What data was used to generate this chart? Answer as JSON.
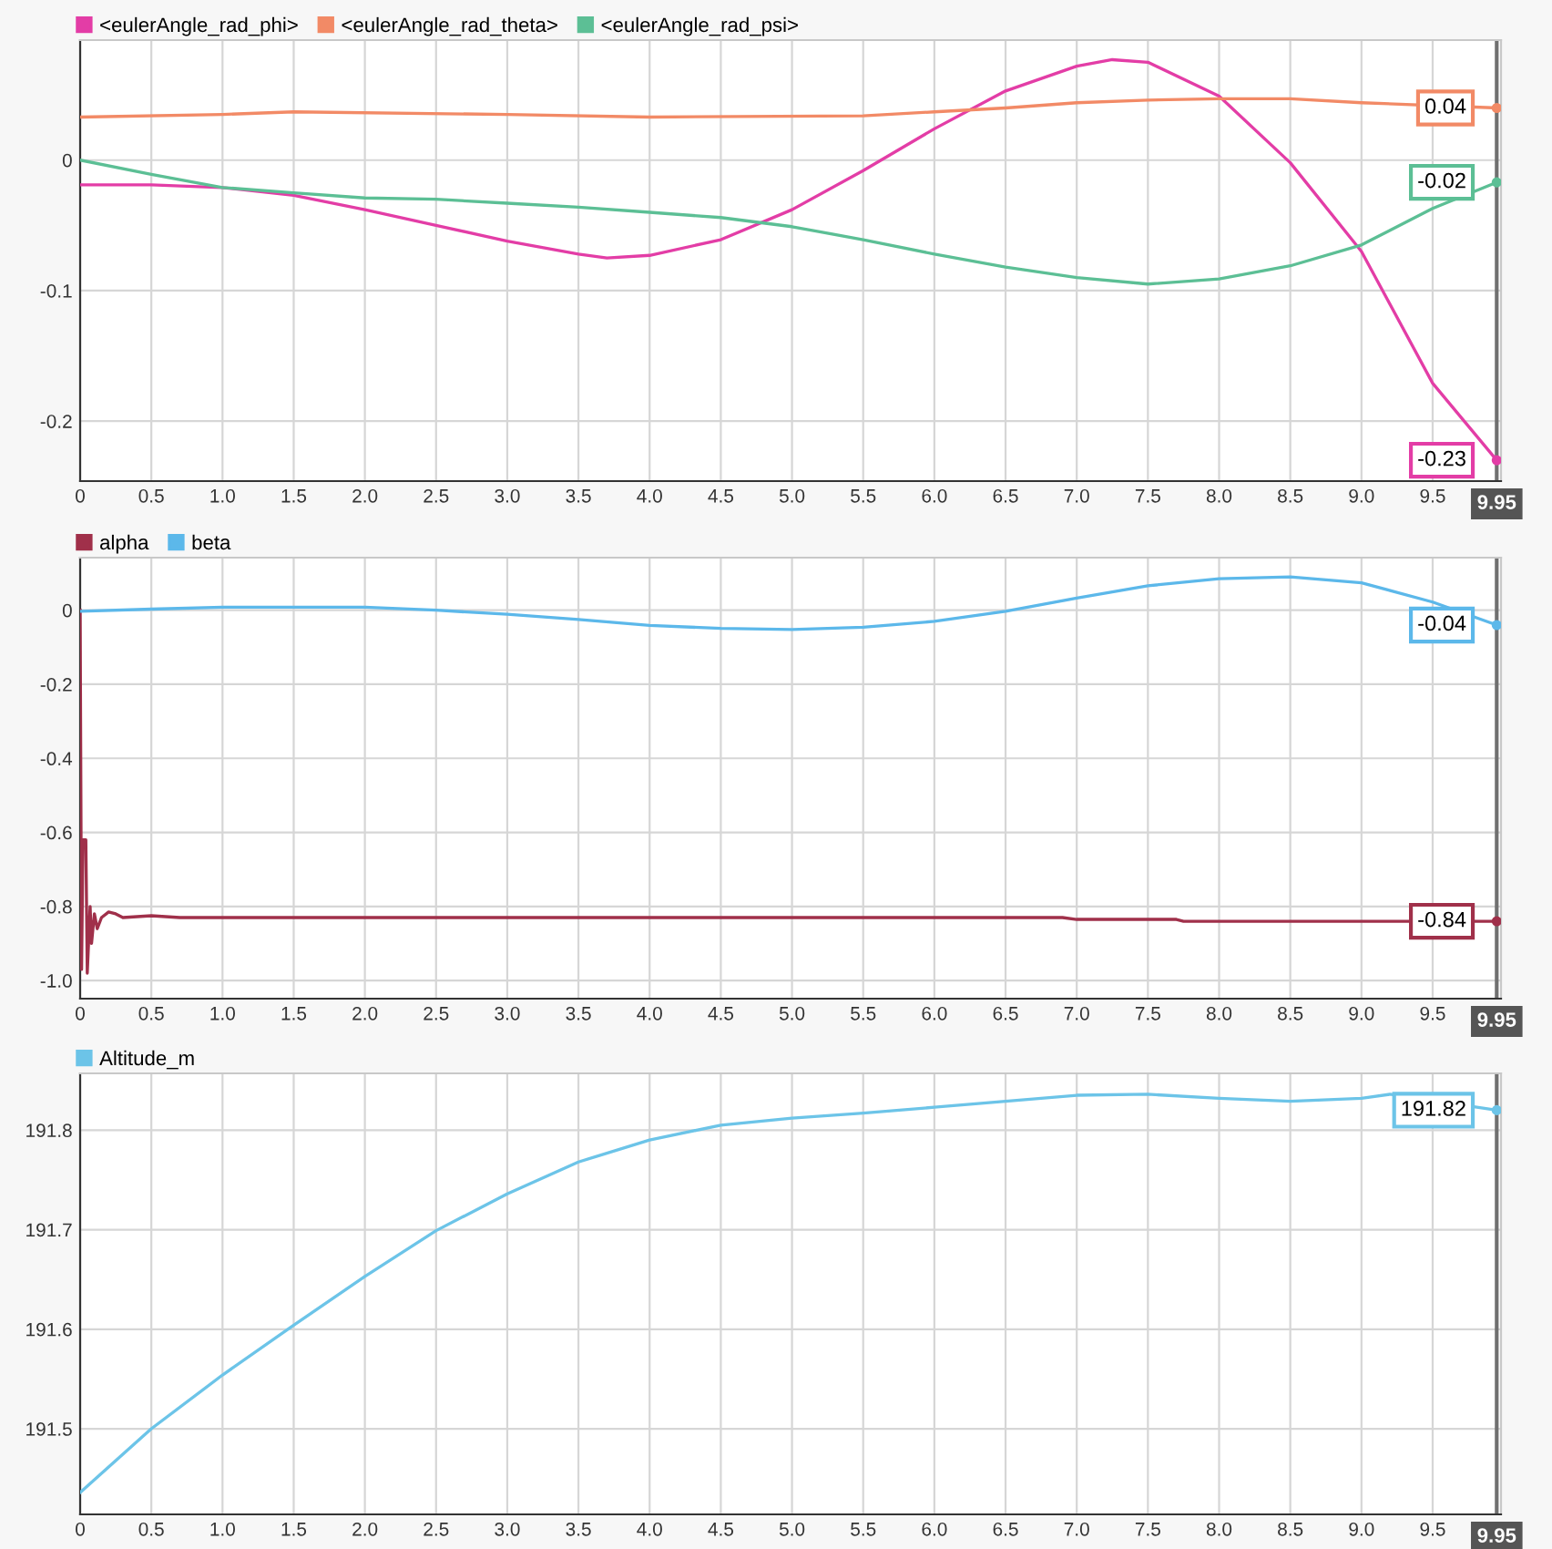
{
  "chart_data": [
    {
      "type": "line",
      "legend": "top left",
      "grid": true,
      "xlim": [
        0,
        9.98
      ],
      "ylim": [
        -0.246,
        0.092
      ],
      "xticks": [
        0,
        0.5,
        {
          "value": 1,
          "label": "1.0"
        },
        1.5,
        {
          "value": 2,
          "label": "2.0"
        },
        2.5,
        {
          "value": 3,
          "label": "3.0"
        },
        3.5,
        {
          "value": 4,
          "label": "4.0"
        },
        4.5,
        {
          "value": 5,
          "label": "5.0"
        },
        5.5,
        {
          "value": 6,
          "label": "6.0"
        },
        6.5,
        {
          "value": 7,
          "label": "7.0"
        },
        7.5,
        {
          "value": 8,
          "label": "8.0"
        },
        8.5,
        {
          "value": 9,
          "label": "9.0"
        },
        9.5
      ],
      "yticks": [
        -0.2,
        -0.1,
        0
      ],
      "ref_lines": [
        {
          "axis": "x",
          "value": 9.95,
          "label": "9.95",
          "color": "#707070"
        }
      ],
      "series": [
        {
          "name": "<eulerAngle_rad_phi>",
          "color": "#e33da6",
          "x": [
            0,
            0.5,
            1,
            1.5,
            2,
            2.5,
            3,
            3.5,
            3.7,
            4,
            4.5,
            5,
            5.5,
            6,
            6.5,
            7,
            7.25,
            7.5,
            8,
            8.5,
            9,
            9.5,
            9.95
          ],
          "values": [
            -0.019,
            -0.019,
            -0.021,
            -0.027,
            -0.038,
            -0.05,
            -0.062,
            -0.072,
            -0.075,
            -0.073,
            -0.061,
            -0.038,
            -0.008,
            0.024,
            0.053,
            0.072,
            0.077,
            0.075,
            0.049,
            -0.002,
            -0.07,
            -0.171,
            -0.23
          ],
          "value_labels": [
            null,
            null,
            null,
            null,
            null,
            null,
            null,
            null,
            null,
            null,
            null,
            null,
            null,
            null,
            null,
            null,
            null,
            null,
            null,
            null,
            null,
            null,
            "-0.23"
          ]
        },
        {
          "name": "<eulerAngle_rad_theta>",
          "color": "#f28a66",
          "x": [
            0,
            1,
            1.5,
            3,
            4,
            5.5,
            6,
            6.5,
            7,
            7.5,
            8,
            8.5,
            9,
            9.95
          ],
          "values": [
            0.033,
            0.035,
            0.037,
            0.035,
            0.033,
            0.034,
            0.037,
            0.04,
            0.044,
            0.046,
            0.047,
            0.047,
            0.044,
            0.04
          ],
          "value_labels": [
            null,
            null,
            null,
            null,
            null,
            null,
            null,
            null,
            null,
            null,
            null,
            null,
            null,
            "0.04"
          ]
        },
        {
          "name": "<eulerAngle_rad_psi>",
          "color": "#5cbf95",
          "x": [
            0,
            0.5,
            1,
            1.5,
            2,
            2.5,
            3,
            3.5,
            4,
            4.5,
            5,
            5.5,
            6,
            6.5,
            7,
            7.5,
            8,
            8.5,
            9,
            9.5,
            9.95
          ],
          "values": [
            0,
            -0.011,
            -0.021,
            -0.025,
            -0.029,
            -0.03,
            -0.033,
            -0.036,
            -0.04,
            -0.044,
            -0.051,
            -0.061,
            -0.072,
            -0.082,
            -0.09,
            -0.095,
            -0.091,
            -0.081,
            -0.065,
            -0.037,
            -0.017
          ],
          "value_labels": [
            null,
            null,
            null,
            null,
            null,
            null,
            null,
            null,
            null,
            null,
            null,
            null,
            null,
            null,
            null,
            null,
            null,
            null,
            null,
            null,
            "-0.02"
          ]
        }
      ]
    },
    {
      "type": "line",
      "legend": "top left",
      "grid": true,
      "xlim": [
        0,
        9.98
      ],
      "ylim": [
        -1.049,
        0.142
      ],
      "xticks": [
        0,
        0.5,
        {
          "value": 1,
          "label": "1.0"
        },
        1.5,
        {
          "value": 2,
          "label": "2.0"
        },
        2.5,
        {
          "value": 3,
          "label": "3.0"
        },
        3.5,
        {
          "value": 4,
          "label": "4.0"
        },
        4.5,
        {
          "value": 5,
          "label": "5.0"
        },
        5.5,
        {
          "value": 6,
          "label": "6.0"
        },
        6.5,
        {
          "value": 7,
          "label": "7.0"
        },
        7.5,
        {
          "value": 8,
          "label": "8.0"
        },
        8.5,
        {
          "value": 9,
          "label": "9.0"
        },
        9.5
      ],
      "yticks": [
        {
          "value": -1,
          "label": "-1.0"
        },
        -0.8,
        -0.6,
        -0.4,
        -0.2,
        0
      ],
      "ref_lines": [
        {
          "axis": "x",
          "value": 9.95,
          "label": "9.95",
          "color": "#707070"
        }
      ],
      "series": [
        {
          "name": "alpha",
          "color": "#a0304a",
          "x": [
            0,
            0.01,
            0.02,
            0.04,
            0.05,
            0.07,
            0.08,
            0.1,
            0.12,
            0.15,
            0.2,
            0.25,
            0.3,
            0.5,
            0.7,
            1,
            6.9,
            7,
            7.7,
            7.75,
            9.95
          ],
          "values": [
            0,
            -0.97,
            -0.62,
            -0.62,
            -0.98,
            -0.8,
            -0.9,
            -0.82,
            -0.86,
            -0.83,
            -0.815,
            -0.82,
            -0.83,
            -0.825,
            -0.83,
            -0.83,
            -0.83,
            -0.835,
            -0.835,
            -0.84,
            -0.84
          ],
          "value_labels": [
            null,
            null,
            null,
            null,
            null,
            null,
            null,
            null,
            null,
            null,
            null,
            null,
            null,
            null,
            null,
            null,
            null,
            null,
            null,
            null,
            "-0.84"
          ]
        },
        {
          "name": "beta",
          "color": "#5cb8ea",
          "x": [
            0,
            0.5,
            1,
            2,
            2.5,
            3,
            3.5,
            4,
            4.5,
            5,
            5.5,
            6,
            6.5,
            7,
            7.5,
            8,
            8.5,
            9,
            9.5,
            9.95
          ],
          "values": [
            -0.003,
            0.003,
            0.008,
            0.008,
            0,
            -0.011,
            -0.025,
            -0.041,
            -0.049,
            -0.052,
            -0.046,
            -0.03,
            -0.003,
            0.033,
            0.066,
            0.085,
            0.09,
            0.074,
            0.022,
            -0.04
          ],
          "value_labels": [
            null,
            null,
            null,
            null,
            null,
            null,
            null,
            null,
            null,
            null,
            null,
            null,
            null,
            null,
            null,
            null,
            null,
            null,
            null,
            "-0.04"
          ]
        }
      ]
    },
    {
      "type": "line",
      "legend": "top left",
      "grid": true,
      "xlim": [
        0,
        9.98
      ],
      "ylim": [
        191.414,
        191.857
      ],
      "xticks": [
        0,
        0.5,
        {
          "value": 1,
          "label": "1.0"
        },
        1.5,
        {
          "value": 2,
          "label": "2.0"
        },
        2.5,
        {
          "value": 3,
          "label": "3.0"
        },
        3.5,
        {
          "value": 4,
          "label": "4.0"
        },
        4.5,
        {
          "value": 5,
          "label": "5.0"
        },
        5.5,
        {
          "value": 6,
          "label": "6.0"
        },
        6.5,
        {
          "value": 7,
          "label": "7.0"
        },
        7.5,
        {
          "value": 8,
          "label": "8.0"
        },
        8.5,
        {
          "value": 9,
          "label": "9.0"
        },
        9.5
      ],
      "yticks": [
        191.5,
        191.6,
        191.7,
        191.8
      ],
      "ref_lines": [
        {
          "axis": "x",
          "value": 9.95,
          "label": "9.95",
          "color": "#707070"
        }
      ],
      "series": [
        {
          "name": "Altitude_m",
          "color": "#6cc4e8",
          "x": [
            0,
            0.5,
            1,
            1.5,
            2,
            2.5,
            3,
            3.5,
            4,
            4.5,
            5,
            5.5,
            6,
            6.5,
            7,
            7.5,
            8,
            8.5,
            9,
            9.2,
            9.95
          ],
          "values": [
            191.436,
            191.5,
            191.554,
            191.604,
            191.653,
            191.699,
            191.736,
            191.768,
            191.79,
            191.805,
            191.812,
            191.817,
            191.823,
            191.829,
            191.835,
            191.836,
            191.832,
            191.829,
            191.832,
            191.836,
            191.82
          ],
          "value_labels": [
            null,
            null,
            null,
            null,
            null,
            null,
            null,
            null,
            null,
            null,
            null,
            null,
            null,
            null,
            null,
            null,
            null,
            null,
            null,
            null,
            "191.82"
          ]
        }
      ]
    }
  ]
}
